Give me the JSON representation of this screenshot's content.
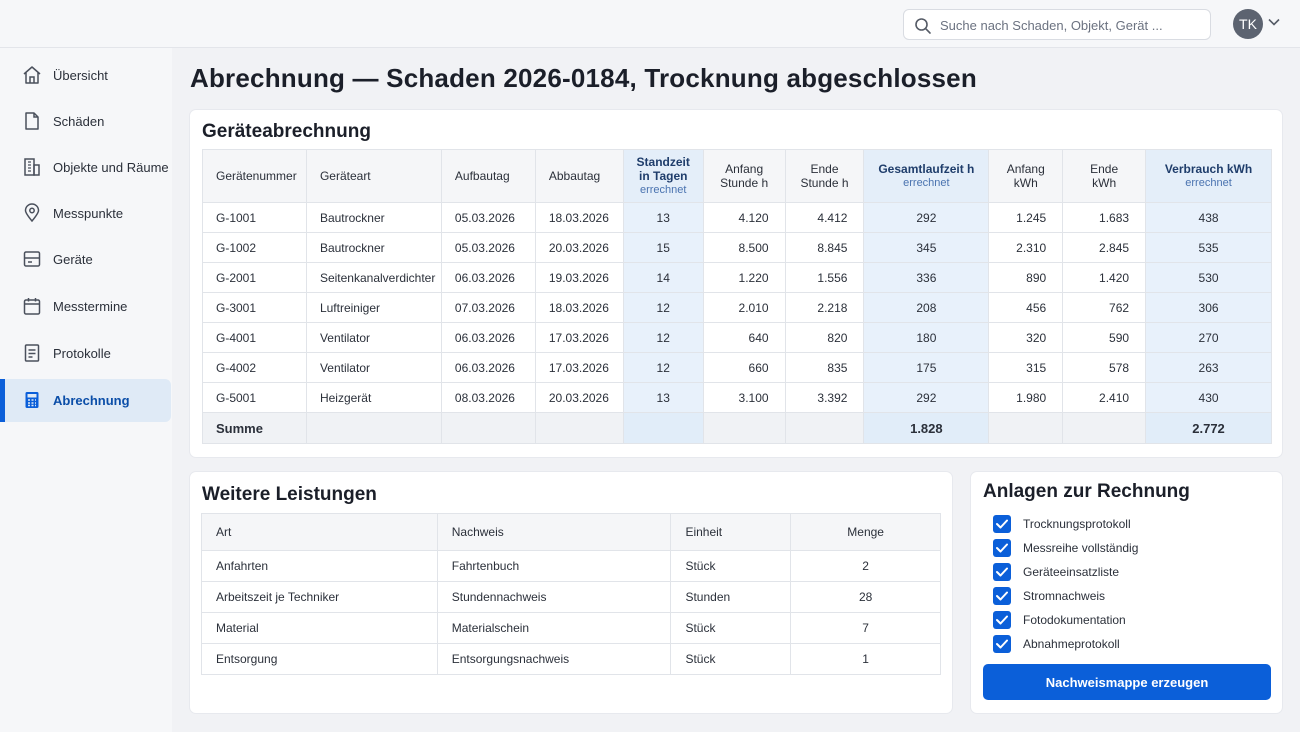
{
  "search": {
    "placeholder": "Suche nach Schaden, Objekt, Gerät ..."
  },
  "user": {
    "initials": "TK"
  },
  "colors": {
    "accent": "#0b5fd9",
    "highlight": "#e8f1fb"
  },
  "sidebar": {
    "items": [
      {
        "label": "Übersicht",
        "icon": "home-icon"
      },
      {
        "label": "Schäden",
        "icon": "document-icon"
      },
      {
        "label": "Objekte und Räume",
        "icon": "building-icon"
      },
      {
        "label": "Messpunkte",
        "icon": "location-pin-icon"
      },
      {
        "label": "Geräte",
        "icon": "device-icon"
      },
      {
        "label": "Messtermine",
        "icon": "calendar-icon"
      },
      {
        "label": "Protokolle",
        "icon": "list-document-icon"
      },
      {
        "label": "Abrechnung",
        "icon": "calculator-icon",
        "active": true
      }
    ]
  },
  "page": {
    "title": "Abrechnung — Schaden 2026-0184, Trocknung abgeschlossen"
  },
  "equipment": {
    "title": "Geräteabrechnung",
    "headers": {
      "nr": "Gerätenummer",
      "type": "Geräteart",
      "setup": "Aufbautag",
      "teardown": "Abbautag",
      "days_l1": "Standzeit",
      "days_l2": "in Tagen",
      "days_sub": "errechnet",
      "hstart_l1": "Anfang",
      "hstart_l2": "Stunde h",
      "hend_l1": "Ende",
      "hend_l2": "Stunde h",
      "total": "Gesamtlaufzeit h",
      "total_sub": "errechnet",
      "kstart_l1": "Anfang",
      "kstart_l2": "kWh",
      "kend_l1": "Ende",
      "kend_l2": "kWh",
      "cons": "Verbrauch kWh",
      "cons_sub": "errechnet"
    },
    "rows": [
      {
        "nr": "G-1001",
        "type": "Bautrockner",
        "setup": "05.03.2026",
        "teardown": "18.03.2026",
        "days": "13",
        "hstart": "4.120",
        "hend": "4.412",
        "total": "292",
        "kstart": "1.245",
        "kend": "1.683",
        "cons": "438"
      },
      {
        "nr": "G-1002",
        "type": "Bautrockner",
        "setup": "05.03.2026",
        "teardown": "20.03.2026",
        "days": "15",
        "hstart": "8.500",
        "hend": "8.845",
        "total": "345",
        "kstart": "2.310",
        "kend": "2.845",
        "cons": "535"
      },
      {
        "nr": "G-2001",
        "type": "Seitenkanalverdichter",
        "setup": "06.03.2026",
        "teardown": "19.03.2026",
        "days": "14",
        "hstart": "1.220",
        "hend": "1.556",
        "total": "336",
        "kstart": "890",
        "kend": "1.420",
        "cons": "530"
      },
      {
        "nr": "G-3001",
        "type": "Luftreiniger",
        "setup": "07.03.2026",
        "teardown": "18.03.2026",
        "days": "12",
        "hstart": "2.010",
        "hend": "2.218",
        "total": "208",
        "kstart": "456",
        "kend": "762",
        "cons": "306"
      },
      {
        "nr": "G-4001",
        "type": "Ventilator",
        "setup": "06.03.2026",
        "teardown": "17.03.2026",
        "days": "12",
        "hstart": "640",
        "hend": "820",
        "total": "180",
        "kstart": "320",
        "kend": "590",
        "cons": "270"
      },
      {
        "nr": "G-4002",
        "type": "Ventilator",
        "setup": "06.03.2026",
        "teardown": "17.03.2026",
        "days": "12",
        "hstart": "660",
        "hend": "835",
        "total": "175",
        "kstart": "315",
        "kend": "578",
        "cons": "263"
      },
      {
        "nr": "G-5001",
        "type": "Heizgerät",
        "setup": "08.03.2026",
        "teardown": "20.03.2026",
        "days": "13",
        "hstart": "3.100",
        "hend": "3.392",
        "total": "292",
        "kstart": "1.980",
        "kend": "2.410",
        "cons": "430"
      }
    ],
    "sum": {
      "label": "Summe",
      "total": "1.828",
      "cons": "2.772"
    }
  },
  "services": {
    "title": "Weitere Leistungen",
    "headers": {
      "art": "Art",
      "proof": "Nachweis",
      "unit": "Einheit",
      "qty": "Menge"
    },
    "rows": [
      {
        "art": "Anfahrten",
        "proof": "Fahrtenbuch",
        "unit": "Stück",
        "qty": "2"
      },
      {
        "art": "Arbeitszeit je Techniker",
        "proof": "Stundennachweis",
        "unit": "Stunden",
        "qty": "28"
      },
      {
        "art": "Material",
        "proof": "Materialschein",
        "unit": "Stück",
        "qty": "7"
      },
      {
        "art": "Entsorgung",
        "proof": "Entsorgungsnachweis",
        "unit": "Stück",
        "qty": "1"
      }
    ]
  },
  "attachments": {
    "title": "Anlagen zur Rechnung",
    "items": [
      {
        "label": "Trocknungsprotokoll",
        "checked": true
      },
      {
        "label": "Messreihe vollständig",
        "checked": true
      },
      {
        "label": "Geräteeinsatzliste",
        "checked": true
      },
      {
        "label": "Stromnachweis",
        "checked": true
      },
      {
        "label": "Fotodokumentation",
        "checked": true
      },
      {
        "label": "Abnahmeprotokoll",
        "checked": true
      }
    ],
    "button": "Nachweismappe erzeugen"
  }
}
